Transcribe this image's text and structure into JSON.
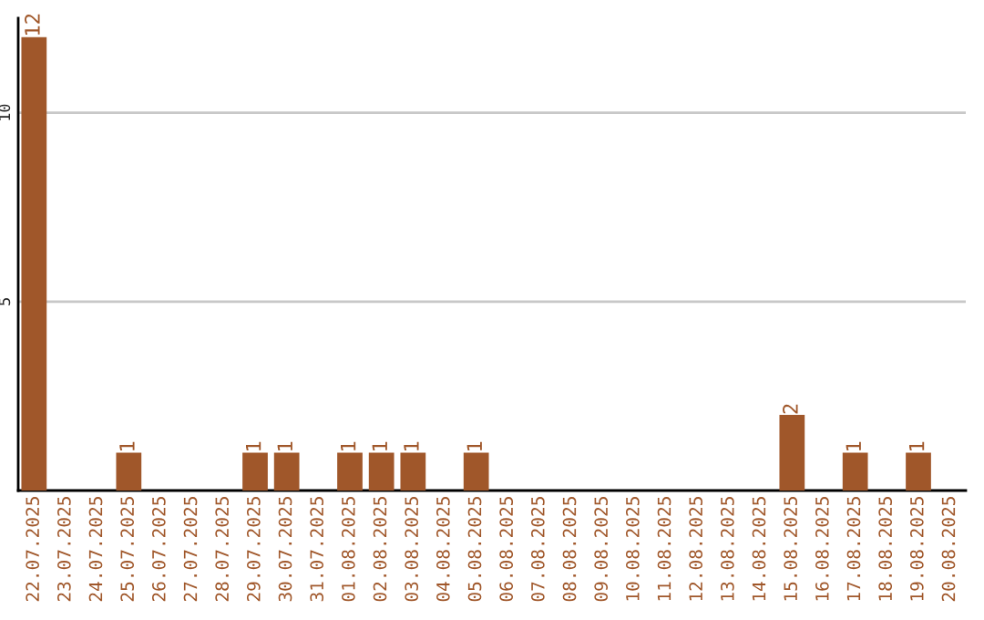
{
  "chart_data": {
    "type": "bar",
    "categories": [
      "22.07.2025",
      "23.07.2025",
      "24.07.2025",
      "25.07.2025",
      "26.07.2025",
      "27.07.2025",
      "28.07.2025",
      "29.07.2025",
      "30.07.2025",
      "31.07.2025",
      "01.08.2025",
      "02.08.2025",
      "03.08.2025",
      "04.08.2025",
      "05.08.2025",
      "06.08.2025",
      "07.08.2025",
      "08.08.2025",
      "09.08.2025",
      "10.08.2025",
      "11.08.2025",
      "12.08.2025",
      "13.08.2025",
      "14.08.2025",
      "15.08.2025",
      "16.08.2025",
      "17.08.2025",
      "18.08.2025",
      "19.08.2025",
      "20.08.2025"
    ],
    "values": [
      12,
      0,
      0,
      1,
      0,
      0,
      0,
      1,
      1,
      0,
      1,
      1,
      1,
      0,
      1,
      0,
      0,
      0,
      0,
      0,
      0,
      0,
      0,
      0,
      2,
      0,
      1,
      0,
      1,
      0
    ],
    "value_labels": [
      "12",
      null,
      null,
      "1",
      null,
      null,
      null,
      "1",
      "1",
      null,
      "1",
      "1",
      "1",
      null,
      "1",
      null,
      null,
      null,
      null,
      null,
      null,
      null,
      null,
      null,
      "2",
      null,
      "1",
      null,
      "1",
      null
    ],
    "color": "#a0572a",
    "ylim": [
      0,
      12.5
    ],
    "yticks": [
      5,
      10
    ],
    "grid": "y"
  }
}
